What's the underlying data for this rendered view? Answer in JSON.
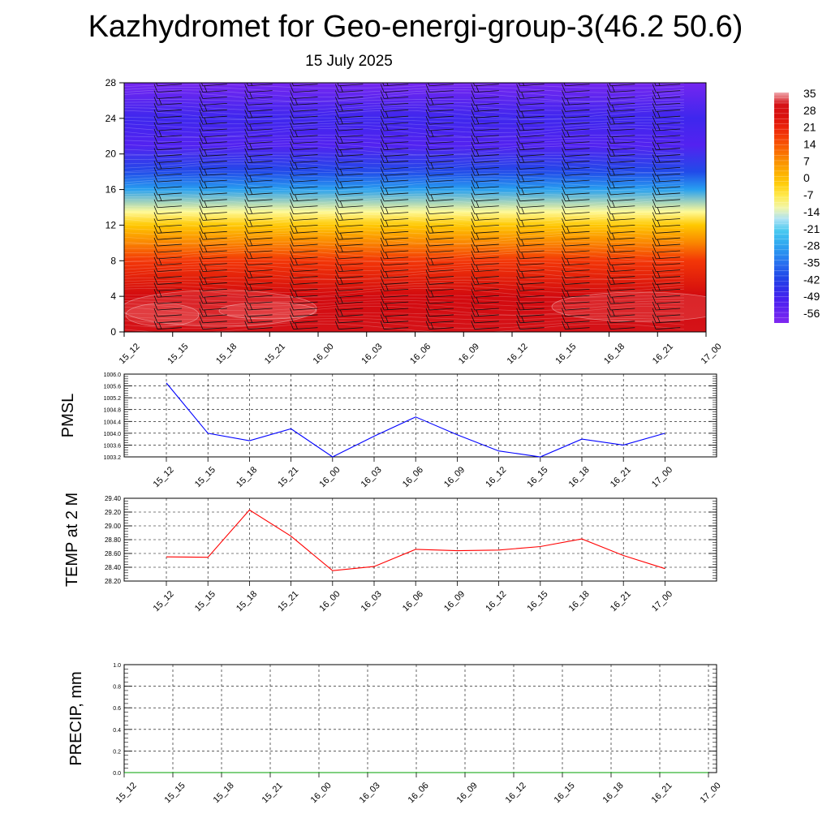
{
  "title": "Kazhydromet for Geo-energi-group-3(46.2 50.6)",
  "subtitle": "15 July 2025",
  "colors": {
    "pmsl_line": "#0000ff",
    "temp_line": "#ff0000",
    "precip_line": "#00a000",
    "grid": "#000000"
  },
  "chart_data": [
    {
      "type": "heatmap",
      "name": "vertical cross-section",
      "x_tick_labels": [
        "15_12",
        "15_15",
        "15_18",
        "15_21",
        "16_00",
        "16_03",
        "16_06",
        "16_09",
        "16_12",
        "16_15",
        "16_18",
        "16_21",
        "17_00"
      ],
      "y_ticks": [
        0,
        4,
        8,
        12,
        16,
        20,
        24,
        28
      ],
      "ylim": [
        0,
        28
      ],
      "colorbar_labels": [
        "35",
        "28",
        "21",
        "14",
        "7",
        "0",
        "-7",
        "-14",
        "-21",
        "-28",
        "-35",
        "-42",
        "-49",
        "-56"
      ],
      "colorbar_range": [
        -60,
        38
      ],
      "field_by_level": [
        {
          "level": 0,
          "value": 33
        },
        {
          "level": 4,
          "value": 30
        },
        {
          "level": 8,
          "value": 20
        },
        {
          "level": 10,
          "value": 10
        },
        {
          "level": 12,
          "value": 0
        },
        {
          "level": 13.5,
          "value": -10
        },
        {
          "level": 16,
          "value": -28
        },
        {
          "level": 18,
          "value": -40
        },
        {
          "level": 21,
          "value": -52
        },
        {
          "level": 24,
          "value": -48
        },
        {
          "level": 28,
          "value": -58
        }
      ],
      "wind_barbs": true
    },
    {
      "type": "line",
      "ylabel": "PMSL",
      "x": [
        "15_12",
        "15_15",
        "15_18",
        "15_21",
        "16_00",
        "16_03",
        "16_06",
        "16_09",
        "16_12",
        "16_15",
        "16_18",
        "16_21",
        "17_00"
      ],
      "y_ticks": [
        "1003.2",
        "1003.6",
        "1004.0",
        "1004.4",
        "1004.8",
        "1005.2",
        "1005.6",
        "1006.0"
      ],
      "ylim": [
        1003.2,
        1006.0
      ],
      "series": [
        {
          "values": [
            1005.7,
            1004.0,
            1003.75,
            1004.15,
            1003.2,
            1003.9,
            1004.55,
            1003.95,
            1003.4,
            1003.2,
            1003.8,
            1003.6,
            1004.0
          ]
        }
      ],
      "grid": true
    },
    {
      "type": "line",
      "ylabel": "TEMP at 2 M",
      "x": [
        "15_12",
        "15_15",
        "15_18",
        "15_21",
        "16_00",
        "16_03",
        "16_06",
        "16_09",
        "16_12",
        "16_15",
        "16_18",
        "16_21",
        "17_00"
      ],
      "y_ticks": [
        "28.20",
        "28.40",
        "28.60",
        "28.80",
        "29.00",
        "29.20",
        "29.40"
      ],
      "ylim": [
        28.2,
        29.4
      ],
      "series": [
        {
          "values": [
            28.55,
            28.545,
            29.23,
            28.85,
            28.35,
            28.41,
            28.66,
            28.64,
            28.65,
            28.7,
            28.81,
            28.57,
            28.38
          ]
        }
      ],
      "grid": true
    },
    {
      "type": "line",
      "ylabel": "PRECIP, mm",
      "x": [
        "15_12",
        "15_15",
        "15_18",
        "15_21",
        "16_00",
        "16_03",
        "16_06",
        "16_09",
        "16_12",
        "16_15",
        "16_18",
        "16_21",
        "17_00"
      ],
      "y_ticks": [
        "0.0",
        "0.2",
        "0.4",
        "0.6",
        "0.8",
        "1.0"
      ],
      "ylim": [
        0,
        1
      ],
      "series": [
        {
          "values": [
            0,
            0,
            0,
            0,
            0,
            0,
            0,
            0,
            0,
            0,
            0,
            0,
            0
          ]
        }
      ],
      "grid": true
    }
  ]
}
